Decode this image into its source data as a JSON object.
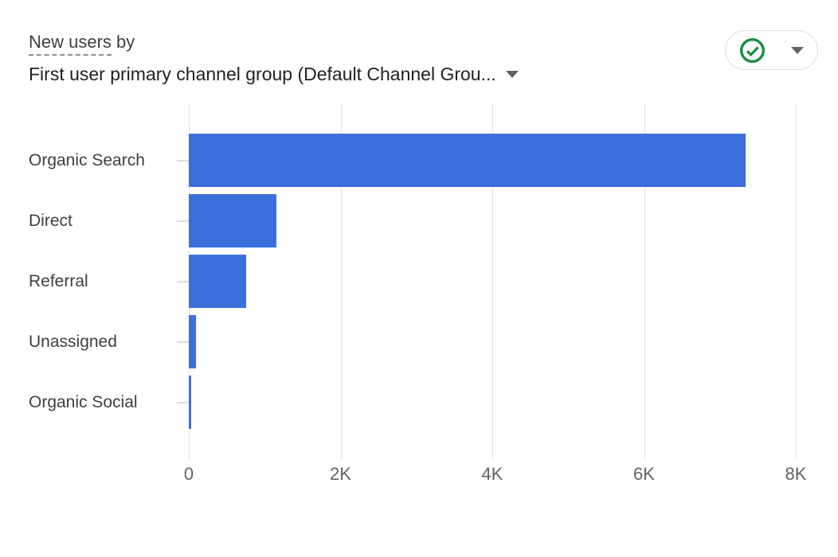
{
  "header": {
    "metric_label": "New users",
    "by_label": " by",
    "dimension_label": "First user primary channel group (Default Channel Grou..."
  },
  "status_button": {
    "icon": "check-circle",
    "check_color": "#1e8e3e",
    "arrow_color": "#5f6368"
  },
  "colors": {
    "bar": "#3c6fdc",
    "grid": "#e1e3e6",
    "category_text": "#3c4043",
    "axis_text": "#5f6368"
  },
  "chart_data": {
    "type": "bar",
    "orientation": "horizontal",
    "title": "New users by First user primary channel group (Default Channel Group)",
    "categories": [
      "Organic Search",
      "Direct",
      "Referral",
      "Unassigned",
      "Organic Social"
    ],
    "values": [
      7340,
      1150,
      760,
      95,
      30
    ],
    "xlabel": "",
    "ylabel": "",
    "xlim": [
      0,
      8000
    ],
    "x_tick_values": [
      0,
      2000,
      4000,
      6000,
      8000
    ],
    "x_tick_labels": [
      "0",
      "2K",
      "4K",
      "6K",
      "8K"
    ],
    "grid": "vertical",
    "legend": "none",
    "bar_color": "#3c6fdc"
  }
}
